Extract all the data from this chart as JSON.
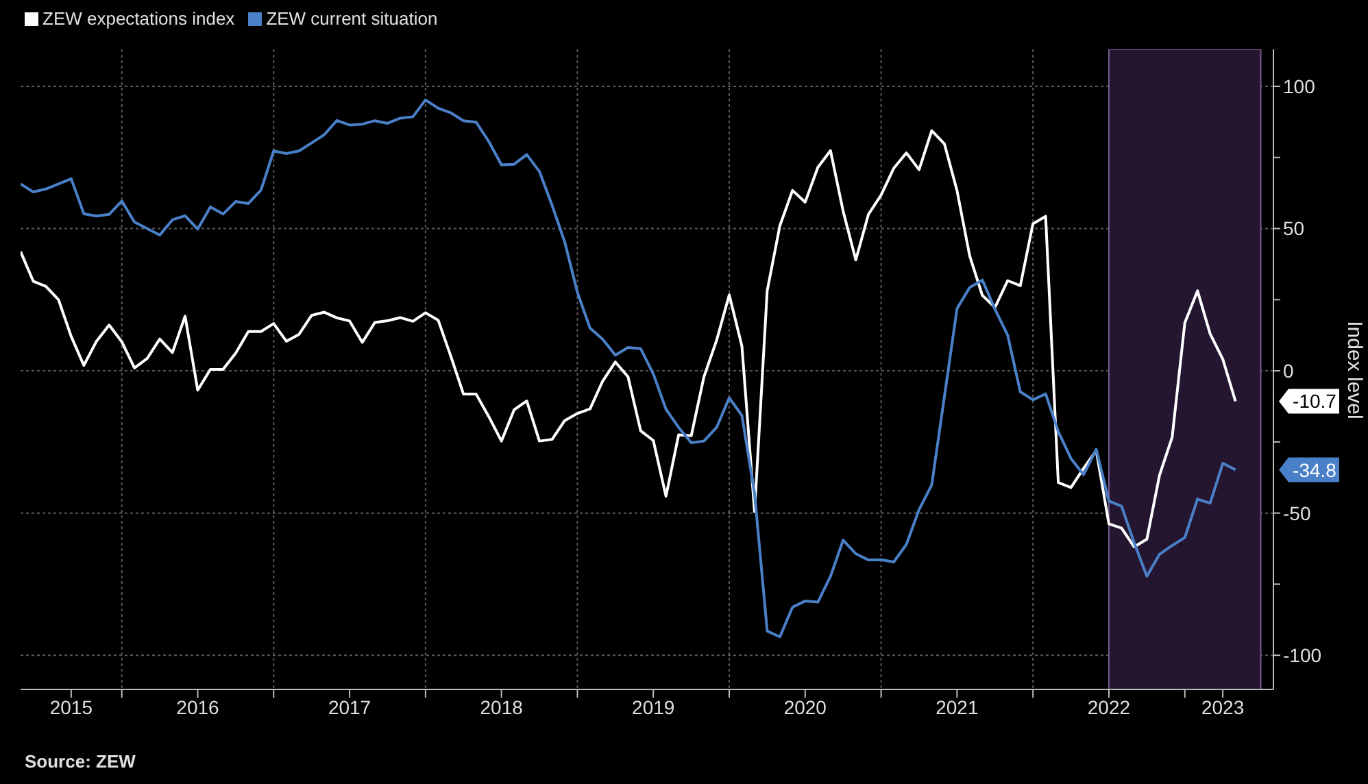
{
  "chart_data": {
    "type": "line",
    "ylabel": "Index level",
    "legend": "top left",
    "grid": true,
    "marker": "none",
    "line_style": "solid",
    "x": [
      "2015-05",
      "2015-06",
      "2015-07",
      "2015-08",
      "2015-09",
      "2015-10",
      "2015-11",
      "2015-12",
      "2016-01",
      "2016-02",
      "2016-03",
      "2016-04",
      "2016-05",
      "2016-06",
      "2016-07",
      "2016-08",
      "2016-09",
      "2016-10",
      "2016-11",
      "2016-12",
      "2017-01",
      "2017-02",
      "2017-03",
      "2017-04",
      "2017-05",
      "2017-06",
      "2017-07",
      "2017-08",
      "2017-09",
      "2017-10",
      "2017-11",
      "2017-12",
      "2018-01",
      "2018-02",
      "2018-03",
      "2018-04",
      "2018-05",
      "2018-06",
      "2018-07",
      "2018-08",
      "2018-09",
      "2018-10",
      "2018-11",
      "2018-12",
      "2019-01",
      "2019-02",
      "2019-03",
      "2019-04",
      "2019-05",
      "2019-06",
      "2019-07",
      "2019-08",
      "2019-09",
      "2019-10",
      "2019-11",
      "2019-12",
      "2020-01",
      "2020-02",
      "2020-03",
      "2020-04",
      "2020-05",
      "2020-06",
      "2020-07",
      "2020-08",
      "2020-09",
      "2020-10",
      "2020-11",
      "2020-12",
      "2021-01",
      "2021-02",
      "2021-03",
      "2021-04",
      "2021-05",
      "2021-06",
      "2021-07",
      "2021-08",
      "2021-09",
      "2021-10",
      "2021-11",
      "2021-12",
      "2022-01",
      "2022-02",
      "2022-03",
      "2022-04",
      "2022-05",
      "2022-06",
      "2022-07",
      "2022-08",
      "2022-09",
      "2022-10",
      "2022-11",
      "2022-12",
      "2023-01",
      "2023-02",
      "2023-03",
      "2023-04",
      "2023-05"
    ],
    "series": [
      {
        "name": "ZEW expectations index",
        "color": "#ffffff",
        "values": [
          41.9,
          31.5,
          29.7,
          25.0,
          12.1,
          1.9,
          10.4,
          16.1,
          10.2,
          1.0,
          4.3,
          11.2,
          6.4,
          19.2,
          -6.8,
          0.5,
          0.5,
          6.2,
          13.8,
          13.8,
          16.6,
          10.4,
          12.8,
          19.5,
          20.6,
          18.6,
          17.5,
          10.0,
          17.0,
          17.6,
          18.7,
          17.4,
          20.4,
          17.8,
          5.1,
          -8.2,
          -8.2,
          -16.1,
          -24.7,
          -13.7,
          -10.6,
          -24.7,
          -24.1,
          -17.5,
          -15.0,
          -13.4,
          -3.6,
          3.1,
          -2.1,
          -21.1,
          -24.5,
          -44.1,
          -22.5,
          -22.8,
          -2.1,
          10.7,
          26.7,
          8.7,
          -49.5,
          28.2,
          51.0,
          63.4,
          59.3,
          71.5,
          77.4,
          56.1,
          39.0,
          55.0,
          61.8,
          71.2,
          76.6,
          70.7,
          84.4,
          79.8,
          63.3,
          40.4,
          26.5,
          22.3,
          31.7,
          29.9,
          51.7,
          54.3,
          -39.3,
          -41.0,
          -34.3,
          -28.0,
          -53.8,
          -55.3,
          -61.9,
          -59.2,
          -36.7,
          -23.3,
          16.9,
          28.1,
          13.0,
          4.1,
          -10.7
        ]
      },
      {
        "name": "ZEW current situation",
        "color": "#4a80c8",
        "values": [
          65.7,
          62.9,
          63.9,
          65.7,
          67.5,
          55.2,
          54.4,
          55.0,
          59.7,
          52.3,
          50.0,
          47.7,
          53.1,
          54.5,
          49.8,
          57.6,
          55.1,
          59.5,
          58.8,
          63.5,
          77.3,
          76.4,
          77.3,
          80.1,
          83.0,
          88.0,
          86.4,
          86.7,
          87.9,
          87.0,
          88.8,
          89.3,
          95.2,
          92.3,
          90.7,
          87.9,
          87.4,
          80.6,
          72.4,
          72.6,
          76.0,
          70.1,
          58.2,
          45.3,
          27.6,
          15.0,
          11.1,
          5.5,
          8.2,
          7.8,
          -1.1,
          -13.5,
          -19.9,
          -25.3,
          -24.7,
          -19.9,
          -9.5,
          -15.7,
          -43.1,
          -91.5,
          -93.5,
          -83.1,
          -80.9,
          -81.3,
          -72.3,
          -59.5,
          -64.3,
          -66.5,
          -66.4,
          -67.2,
          -61.0,
          -48.8,
          -40.1,
          -9.1,
          21.9,
          29.3,
          31.9,
          21.6,
          12.5,
          -7.4,
          -10.2,
          -8.1,
          -21.4,
          -30.8,
          -36.5,
          -27.6,
          -45.8,
          -47.6,
          -60.5,
          -72.2,
          -64.5,
          -61.4,
          -58.6,
          -45.1,
          -46.5,
          -32.5,
          -34.8
        ]
      }
    ],
    "xlim": [
      "2015-05",
      "2023-08"
    ],
    "xticks": [
      {
        "value": "2015-09",
        "label": "2015"
      },
      {
        "value": "2016-01",
        "label": null
      },
      {
        "value": "2016-07",
        "label": "2016"
      },
      {
        "value": "2017-01",
        "label": null
      },
      {
        "value": "2017-07",
        "label": "2017"
      },
      {
        "value": "2018-01",
        "label": null
      },
      {
        "value": "2018-07",
        "label": "2018"
      },
      {
        "value": "2019-01",
        "label": null
      },
      {
        "value": "2019-07",
        "label": "2019"
      },
      {
        "value": "2020-01",
        "label": null
      },
      {
        "value": "2020-07",
        "label": "2020"
      },
      {
        "value": "2021-01",
        "label": null
      },
      {
        "value": "2021-07",
        "label": "2021"
      },
      {
        "value": "2022-01",
        "label": null
      },
      {
        "value": "2022-07",
        "label": "2022"
      },
      {
        "value": "2023-01",
        "label": null
      },
      {
        "value": "2023-04",
        "label": "2023"
      }
    ],
    "ylim": [
      -112,
      113
    ],
    "yticks": [
      100,
      {
        "value": 75,
        "label": null
      },
      50,
      {
        "value": 25,
        "label": null
      },
      0,
      {
        "value": -25,
        "label": null
      },
      -50,
      {
        "value": -75,
        "label": null
      },
      -100
    ],
    "bands": [
      {
        "axis": "x",
        "from": "2022-07",
        "to": "2023-07",
        "color": "#241630"
      }
    ],
    "annotations": [
      {
        "text": "-10.7",
        "x": "2023-05",
        "y": -10.7
      },
      {
        "text": "-34.8",
        "x": "2023-05",
        "y": -34.8
      },
      "Source: ZEW"
    ]
  }
}
